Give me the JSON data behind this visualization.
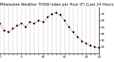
{
  "title": "Milwaukee Weather THSW Index per Hour (F) (Last 24 Hours)",
  "x_values": [
    0,
    1,
    2,
    3,
    4,
    5,
    6,
    7,
    8,
    9,
    10,
    11,
    12,
    13,
    14,
    15,
    16,
    17,
    18,
    19,
    20,
    21,
    22,
    23
  ],
  "y_values": [
    55,
    45,
    42,
    48,
    52,
    56,
    50,
    58,
    55,
    60,
    58,
    65,
    70,
    72,
    68,
    60,
    50,
    42,
    35,
    28,
    25,
    22,
    20,
    18
  ],
  "line_color": "#cc0000",
  "marker_color": "#000000",
  "background_color": "#ffffff",
  "grid_color": "#888888",
  "title_color": "#000000",
  "ylim": [
    10,
    80
  ],
  "xlim": [
    0,
    23
  ],
  "yticks": [
    20,
    30,
    40,
    50,
    60,
    70
  ],
  "xtick_labels": [
    "0",
    "",
    "",
    "",
    "",
    "5",
    "",
    "",
    "",
    "",
    "10",
    "",
    "",
    "",
    "",
    "15",
    "",
    "",
    "",
    "",
    "20",
    "",
    "",
    "23"
  ],
  "vgrid_positions": [
    0,
    1,
    2,
    3,
    4,
    5,
    6,
    7,
    8,
    9,
    10,
    11,
    12,
    13,
    14,
    15,
    16,
    17,
    18,
    19,
    20,
    21,
    22,
    23
  ],
  "title_fontsize": 3.8,
  "tick_fontsize": 3.2,
  "line_width": 0.7,
  "marker_size": 1.8
}
